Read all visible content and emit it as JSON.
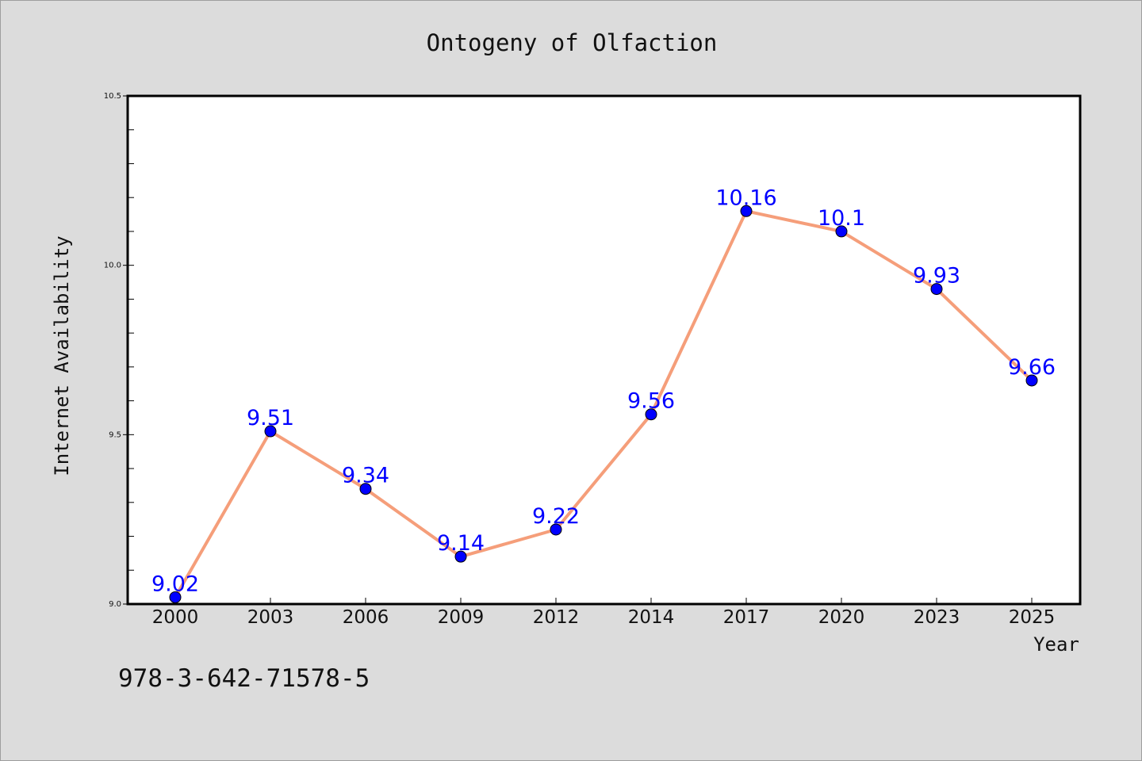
{
  "chart_data": {
    "type": "line",
    "title": "Ontogeny of Olfaction",
    "xlabel": "Year",
    "ylabel": "Internet Availability",
    "categories": [
      "2000",
      "2003",
      "2006",
      "2009",
      "2012",
      "2014",
      "2017",
      "2020",
      "2023",
      "2025"
    ],
    "series": [
      {
        "values": [
          9.02,
          9.51,
          9.34,
          9.14,
          9.22,
          9.56,
          10.16,
          10.1,
          9.93,
          9.66
        ],
        "data_labels": [
          "9.02",
          "9.51",
          "9.34",
          "9.14",
          "9.22",
          "9.56",
          "10.16",
          "10.1",
          "9.93",
          "9.66"
        ],
        "line_color": "#f59e7a",
        "marker_color": "#0000ff"
      }
    ],
    "ylim": [
      9.0,
      10.5
    ],
    "yticks": [
      "9.0",
      "9.5",
      "10.0",
      "10.5"
    ],
    "y_major_values": [
      9.0,
      9.5,
      10.0,
      10.5
    ],
    "y_minor_step": 0.1,
    "grid": false,
    "legend": "none"
  },
  "footer": {
    "text": "978-3-642-71578-5"
  },
  "colors": {
    "background": "#dcdcdc",
    "plot_background": "#ffffff",
    "axis_frame": "#000000",
    "data_label": "#0000ff"
  }
}
